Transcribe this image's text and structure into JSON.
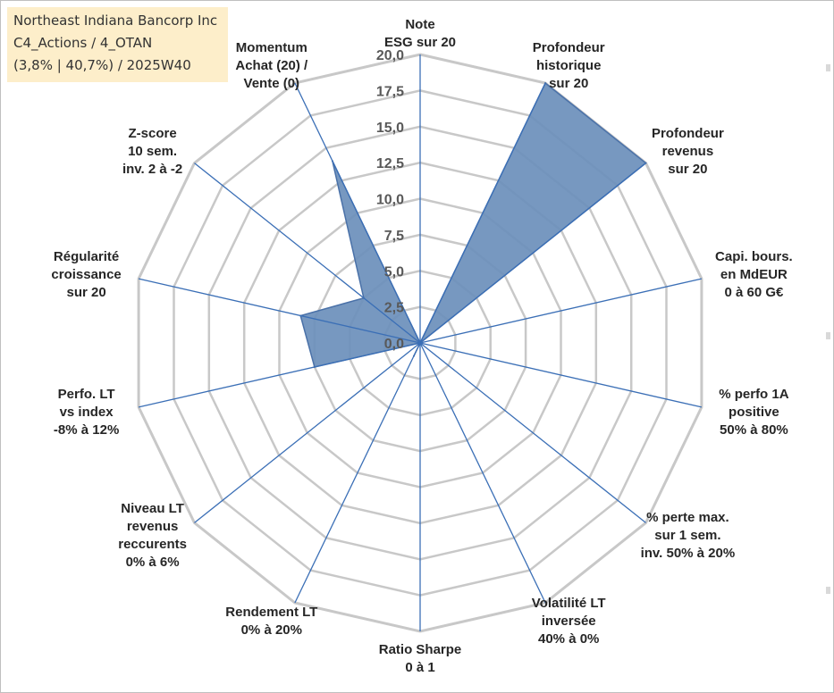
{
  "info": {
    "company": "Northeast Indiana Bancorp Inc",
    "category": "C4_Actions / 4_OTAN",
    "stats": "(3,8% | 40,7%) / 2025W40"
  },
  "chart_data": {
    "type": "radar",
    "rlim": [
      0,
      20
    ],
    "ticks": [
      "0,0",
      "2,5",
      "5,0",
      "7,5",
      "10,0",
      "12,5",
      "15,0",
      "17,5",
      "20,0"
    ],
    "tick_values": [
      0,
      2.5,
      5,
      7.5,
      10,
      12.5,
      15,
      17.5,
      20
    ],
    "grid": true,
    "axes": [
      {
        "label": [
          "Note",
          "ESG sur 20"
        ],
        "value": 0
      },
      {
        "label": [
          "Profondeur",
          "historique",
          "sur 20"
        ],
        "value": 20
      },
      {
        "label": [
          "Profondeur",
          "revenus",
          "sur 20"
        ],
        "value": 20
      },
      {
        "label": [
          "Capi. bours.",
          "en MdEUR",
          "0 à 60 G€"
        ],
        "value": 0
      },
      {
        "label": [
          "% perfo 1A",
          "positive",
          "50% à 80%"
        ],
        "value": 0
      },
      {
        "label": [
          "% perte max.",
          "sur 1 sem.",
          "inv. 50% à 20%"
        ],
        "value": 0
      },
      {
        "label": [
          "Volatilité LT",
          "inversée",
          "40% à 0%"
        ],
        "value": 0
      },
      {
        "label": [
          "Ratio Sharpe",
          "0 à 1"
        ],
        "value": 0
      },
      {
        "label": [
          "Rendement LT",
          "0% à 20%"
        ],
        "value": 1
      },
      {
        "label": [
          "Niveau LT",
          "revenus",
          "reccurents",
          "0% à 6%"
        ],
        "value": 0
      },
      {
        "label": [
          "Perfo. LT",
          "vs index",
          "-8% à 12%"
        ],
        "value": 7.5
      },
      {
        "label": [
          "Régularité",
          "croissance",
          "sur 20"
        ],
        "value": 8.5
      },
      {
        "label": [
          "Z-score",
          "10 sem.",
          "inv. 2 à -2"
        ],
        "value": 5
      },
      {
        "label": [
          "Momentum",
          "Achat (20) /",
          "Vente (0)"
        ],
        "value": 14
      }
    ],
    "series": [
      {
        "fill": "#6b8fbb",
        "stroke": "#4a71a8"
      }
    ],
    "colors": {
      "grid": "#c8c8c8",
      "spoke": "#3b6fb6"
    }
  }
}
